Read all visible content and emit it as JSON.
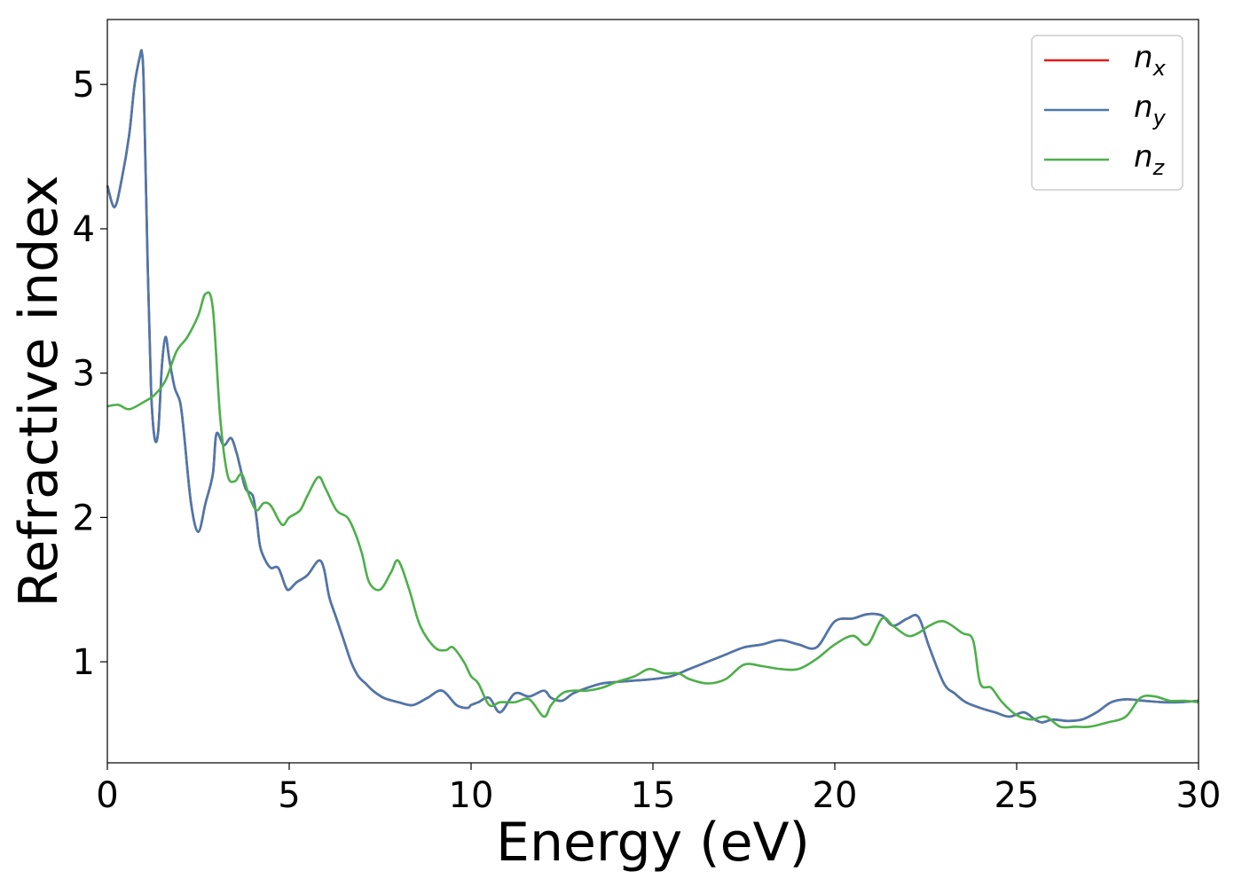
{
  "chart_data": {
    "type": "line",
    "xlabel": "Energy (eV)",
    "ylabel": "Refractive index",
    "xlim": [
      0,
      30
    ],
    "ylim": [
      0.3,
      5.45
    ],
    "xticks": [
      "0",
      "5",
      "10",
      "15",
      "20",
      "25",
      "30"
    ],
    "yticks": [
      "1",
      "2",
      "3",
      "4",
      "5"
    ],
    "grid": false,
    "legend_position": "top-right",
    "series": [
      {
        "name": "n_x",
        "label_base": "n",
        "label_sub": "x",
        "color": "#e41a1c",
        "x": [
          0,
          0.2,
          0.4,
          0.6,
          0.75,
          0.9,
          0.95,
          1.0,
          1.1,
          1.2,
          1.3,
          1.4,
          1.5,
          1.6,
          1.7,
          1.85,
          2.0,
          2.1,
          2.3,
          2.5,
          2.7,
          2.9,
          3.0,
          3.2,
          3.4,
          3.55,
          3.65,
          3.8,
          4.0,
          4.1,
          4.2,
          4.35,
          4.5,
          4.7,
          4.9,
          5.0,
          5.2,
          5.5,
          5.8,
          5.95,
          6.1,
          6.3,
          6.5,
          6.7,
          6.9,
          7.1,
          7.3,
          7.6,
          8.0,
          8.4,
          8.8,
          9.2,
          9.6,
          9.9,
          10.0,
          10.2,
          10.5,
          10.8,
          11.2,
          11.6,
          12.0,
          12.2,
          12.5,
          12.8,
          13.2,
          13.6,
          14.0,
          14.5,
          15.0,
          15.5,
          16.0,
          16.5,
          17.0,
          17.5,
          18.0,
          18.5,
          19.0,
          19.5,
          20.0,
          20.5,
          20.9,
          21.3,
          21.6,
          22.0,
          22.3,
          22.6,
          23.0,
          23.3,
          23.6,
          24.0,
          24.4,
          24.8,
          25.2,
          25.5,
          25.7,
          26.0,
          26.4,
          26.8,
          27.2,
          27.6,
          28.0,
          28.5,
          29.0,
          29.5,
          30.0
        ],
        "values": [
          4.3,
          4.15,
          4.35,
          4.65,
          5.0,
          5.2,
          5.22,
          5.0,
          3.85,
          2.9,
          2.55,
          2.6,
          3.05,
          3.25,
          3.1,
          2.9,
          2.8,
          2.6,
          2.1,
          1.9,
          2.1,
          2.3,
          2.58,
          2.5,
          2.55,
          2.45,
          2.35,
          2.2,
          2.15,
          2.0,
          1.8,
          1.7,
          1.65,
          1.65,
          1.52,
          1.5,
          1.55,
          1.6,
          1.7,
          1.65,
          1.45,
          1.3,
          1.15,
          1.0,
          0.9,
          0.85,
          0.8,
          0.75,
          0.72,
          0.7,
          0.75,
          0.8,
          0.7,
          0.68,
          0.7,
          0.72,
          0.75,
          0.65,
          0.78,
          0.76,
          0.8,
          0.75,
          0.73,
          0.78,
          0.82,
          0.85,
          0.86,
          0.87,
          0.88,
          0.9,
          0.95,
          1.0,
          1.05,
          1.1,
          1.12,
          1.15,
          1.12,
          1.1,
          1.28,
          1.3,
          1.33,
          1.32,
          1.25,
          1.3,
          1.31,
          1.1,
          0.85,
          0.78,
          0.72,
          0.68,
          0.65,
          0.62,
          0.65,
          0.6,
          0.58,
          0.6,
          0.59,
          0.6,
          0.65,
          0.72,
          0.74,
          0.73,
          0.72,
          0.72,
          0.73
        ]
      },
      {
        "name": "n_y",
        "label_base": "n",
        "label_sub": "y",
        "color": "#4a78ad",
        "x": [
          0,
          0.2,
          0.4,
          0.6,
          0.75,
          0.9,
          0.95,
          1.0,
          1.1,
          1.2,
          1.3,
          1.4,
          1.5,
          1.6,
          1.7,
          1.85,
          2.0,
          2.1,
          2.3,
          2.5,
          2.7,
          2.9,
          3.0,
          3.2,
          3.4,
          3.55,
          3.65,
          3.8,
          4.0,
          4.1,
          4.2,
          4.35,
          4.5,
          4.7,
          4.9,
          5.0,
          5.2,
          5.5,
          5.8,
          5.95,
          6.1,
          6.3,
          6.5,
          6.7,
          6.9,
          7.1,
          7.3,
          7.6,
          8.0,
          8.4,
          8.8,
          9.2,
          9.6,
          9.9,
          10.0,
          10.2,
          10.5,
          10.8,
          11.2,
          11.6,
          12.0,
          12.2,
          12.5,
          12.8,
          13.2,
          13.6,
          14.0,
          14.5,
          15.0,
          15.5,
          16.0,
          16.5,
          17.0,
          17.5,
          18.0,
          18.5,
          19.0,
          19.5,
          20.0,
          20.5,
          20.9,
          21.3,
          21.6,
          22.0,
          22.3,
          22.6,
          23.0,
          23.3,
          23.6,
          24.0,
          24.4,
          24.8,
          25.2,
          25.5,
          25.7,
          26.0,
          26.4,
          26.8,
          27.2,
          27.6,
          28.0,
          28.5,
          29.0,
          29.5,
          30.0
        ],
        "values": [
          4.3,
          4.15,
          4.35,
          4.65,
          5.0,
          5.2,
          5.22,
          5.0,
          3.85,
          2.9,
          2.55,
          2.6,
          3.05,
          3.25,
          3.1,
          2.9,
          2.8,
          2.6,
          2.1,
          1.9,
          2.1,
          2.3,
          2.58,
          2.5,
          2.55,
          2.45,
          2.35,
          2.2,
          2.15,
          2.0,
          1.8,
          1.7,
          1.65,
          1.65,
          1.52,
          1.5,
          1.55,
          1.6,
          1.7,
          1.65,
          1.45,
          1.3,
          1.15,
          1.0,
          0.9,
          0.85,
          0.8,
          0.75,
          0.72,
          0.7,
          0.75,
          0.8,
          0.7,
          0.68,
          0.7,
          0.72,
          0.75,
          0.65,
          0.78,
          0.76,
          0.8,
          0.75,
          0.73,
          0.78,
          0.82,
          0.85,
          0.86,
          0.87,
          0.88,
          0.9,
          0.95,
          1.0,
          1.05,
          1.1,
          1.12,
          1.15,
          1.12,
          1.1,
          1.28,
          1.3,
          1.33,
          1.32,
          1.25,
          1.3,
          1.31,
          1.1,
          0.85,
          0.78,
          0.72,
          0.68,
          0.65,
          0.62,
          0.65,
          0.6,
          0.58,
          0.6,
          0.59,
          0.6,
          0.65,
          0.72,
          0.74,
          0.73,
          0.72,
          0.72,
          0.73
        ]
      },
      {
        "name": "n_z",
        "label_base": "n",
        "label_sub": "z",
        "color": "#4daf4a",
        "x": [
          0,
          0.3,
          0.6,
          1.0,
          1.3,
          1.6,
          1.9,
          2.2,
          2.5,
          2.7,
          2.9,
          3.1,
          3.3,
          3.5,
          3.7,
          3.9,
          4.1,
          4.3,
          4.5,
          4.8,
          5.0,
          5.3,
          5.5,
          5.8,
          6.0,
          6.3,
          6.6,
          6.8,
          7.0,
          7.2,
          7.5,
          7.8,
          8.0,
          8.3,
          8.6,
          9.0,
          9.3,
          9.5,
          9.8,
          10.0,
          10.2,
          10.5,
          10.8,
          11.2,
          11.6,
          12.0,
          12.2,
          12.5,
          12.8,
          13.2,
          13.6,
          14.0,
          14.5,
          14.9,
          15.3,
          15.7,
          16.0,
          16.5,
          17.0,
          17.5,
          18.0,
          18.5,
          19.0,
          19.5,
          20.0,
          20.5,
          20.9,
          21.3,
          21.6,
          22.0,
          22.3,
          22.6,
          23.0,
          23.5,
          23.8,
          24.0,
          24.3,
          24.6,
          25.0,
          25.4,
          25.8,
          26.2,
          26.6,
          27.0,
          27.5,
          28.0,
          28.4,
          28.8,
          29.2,
          29.6,
          30.0
        ],
        "values": [
          2.77,
          2.78,
          2.75,
          2.8,
          2.85,
          2.95,
          3.15,
          3.25,
          3.4,
          3.55,
          3.45,
          2.7,
          2.3,
          2.25,
          2.3,
          2.15,
          2.05,
          2.1,
          2.08,
          1.95,
          2.0,
          2.05,
          2.15,
          2.28,
          2.2,
          2.05,
          2.0,
          1.9,
          1.75,
          1.55,
          1.5,
          1.62,
          1.7,
          1.5,
          1.25,
          1.1,
          1.08,
          1.1,
          1.0,
          0.9,
          0.85,
          0.7,
          0.72,
          0.72,
          0.74,
          0.62,
          0.7,
          0.78,
          0.8,
          0.8,
          0.82,
          0.86,
          0.9,
          0.95,
          0.92,
          0.92,
          0.88,
          0.85,
          0.88,
          0.98,
          0.97,
          0.95,
          0.95,
          1.02,
          1.12,
          1.18,
          1.12,
          1.3,
          1.25,
          1.18,
          1.2,
          1.25,
          1.28,
          1.2,
          1.15,
          0.85,
          0.82,
          0.72,
          0.63,
          0.6,
          0.62,
          0.55,
          0.55,
          0.55,
          0.58,
          0.62,
          0.75,
          0.76,
          0.73,
          0.73,
          0.72
        ]
      }
    ]
  }
}
